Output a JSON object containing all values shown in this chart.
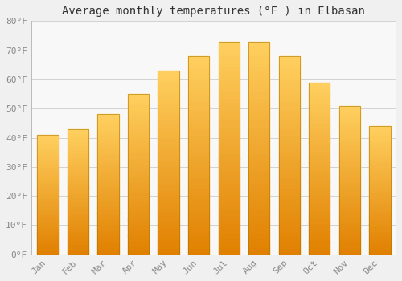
{
  "months": [
    "Jan",
    "Feb",
    "Mar",
    "Apr",
    "May",
    "Jun",
    "Jul",
    "Aug",
    "Sep",
    "Oct",
    "Nov",
    "Dec"
  ],
  "values": [
    41,
    43,
    48,
    55,
    63,
    68,
    73,
    73,
    68,
    59,
    51,
    44
  ],
  "title": "Average monthly temperatures (°F ) in Elbasan",
  "bar_color_mid": "#FFA500",
  "bar_color_bottom": "#E08000",
  "bar_color_top": "#FFD060",
  "background_color": "#F0F0F0",
  "plot_bg_color": "#F8F8F8",
  "ylim": [
    0,
    80
  ],
  "yticks": [
    0,
    10,
    20,
    30,
    40,
    50,
    60,
    70,
    80
  ],
  "ytick_labels": [
    "0°F",
    "10°F",
    "20°F",
    "30°F",
    "40°F",
    "50°F",
    "60°F",
    "70°F",
    "80°F"
  ],
  "grid_color": "#CCCCCC",
  "title_fontsize": 10,
  "tick_fontsize": 8,
  "tick_color": "#888888",
  "bar_width": 0.7
}
